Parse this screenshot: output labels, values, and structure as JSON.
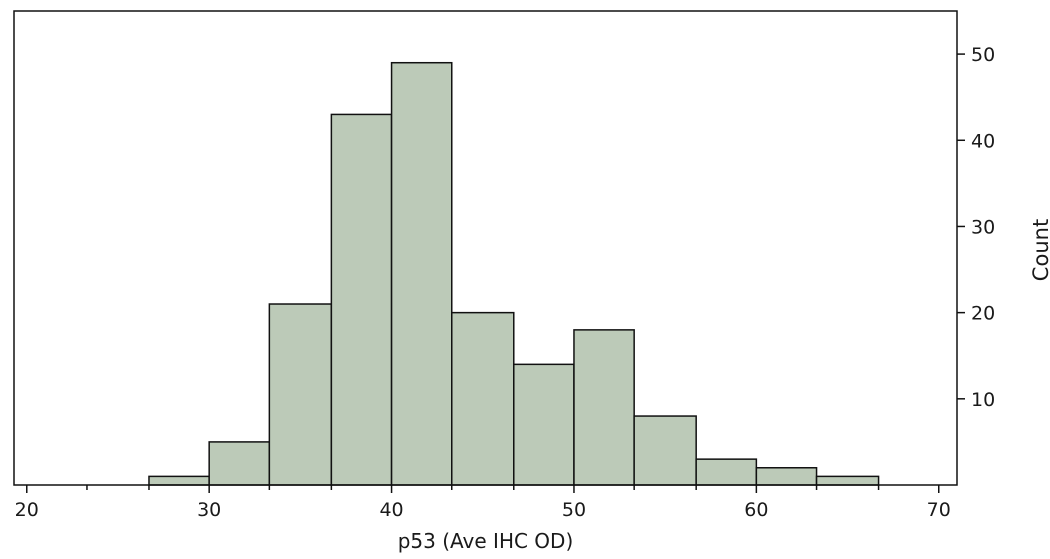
{
  "chart_data": {
    "type": "bar",
    "subtype": "histogram",
    "xlabel": "p53 (Ave IHC OD)",
    "ylabel": "Count",
    "y_axis_side": "right",
    "xlim": [
      19.3,
      71.0
    ],
    "ylim": [
      0,
      55
    ],
    "x_major_ticks": [
      20,
      30,
      40,
      50,
      60,
      70
    ],
    "x_tick_labels": [
      "20",
      "30",
      "40",
      "50",
      "60",
      "70"
    ],
    "x_minor_ticks": [
      23.3,
      26.7,
      33.3,
      36.7,
      43.3,
      46.7,
      53.3,
      56.7,
      63.3,
      66.7
    ],
    "y_major_ticks": [
      10,
      20,
      30,
      40,
      50
    ],
    "y_tick_labels": [
      "10",
      "20",
      "30",
      "40",
      "50"
    ],
    "bin_edges": [
      26.7,
      30.0,
      33.3,
      36.7,
      40.0,
      43.3,
      46.7,
      50.0,
      53.3,
      56.7,
      60.0,
      63.3,
      66.7
    ],
    "values": [
      1,
      5,
      21,
      43,
      49,
      20,
      14,
      18,
      8,
      3,
      2,
      1
    ],
    "grid": false,
    "legend": "none",
    "bar_color": "#bccab8",
    "edge_color": "#111111"
  }
}
